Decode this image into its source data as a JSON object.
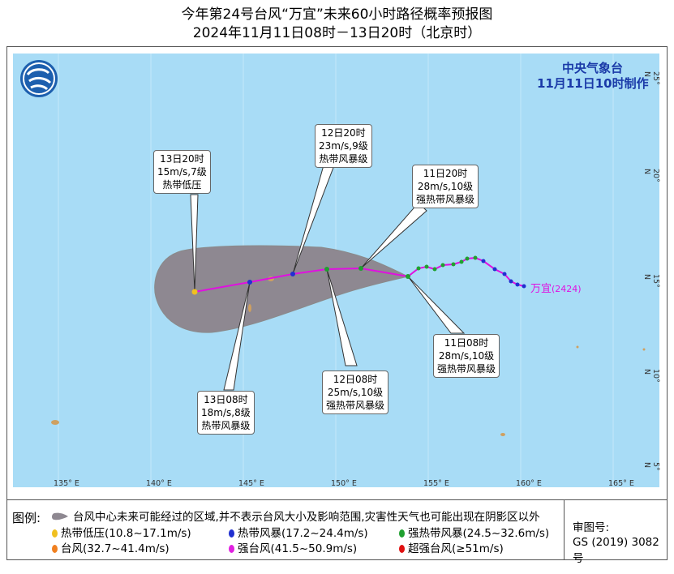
{
  "title_line1": "今年第24号台风“万宜”未来60小时路径概率预报图",
  "title_line2": "2024年11月11日08时－13日20时（北京时）",
  "agency": "中央气象台",
  "issued": "11月11日10时制作",
  "typhoon_label": "万宜",
  "typhoon_id": "(2424)",
  "x_ticks": [
    "135° E",
    "140° E",
    "145° E",
    "150° E",
    "155° E",
    "160° E",
    "165° E"
  ],
  "y_ticks": [
    "25° N",
    "20° N",
    "15° N",
    "10° N",
    "5° N"
  ],
  "callouts": [
    {
      "time": "13日20时",
      "wind": "15m/s,7级",
      "grade": "热带低压"
    },
    {
      "time": "12日20时",
      "wind": "23m/s,9级",
      "grade": "热带风暴级"
    },
    {
      "time": "11日20时",
      "wind": "28m/s,10级",
      "grade": "强热带风暴级"
    },
    {
      "time": "11日08时",
      "wind": "28m/s,10级",
      "grade": "强热带风暴级"
    },
    {
      "time": "12日08时",
      "wind": "25m/s,10级",
      "grade": "强热带风暴级"
    },
    {
      "time": "13日08时",
      "wind": "18m/s,8级",
      "grade": "热带风暴级"
    }
  ],
  "legend": {
    "title": "图例:",
    "cone": "台风中心未来可能经过的区域,并不表示台风大小及影响范围,灾害性天气也可能出现在阴影区以外",
    "items": [
      {
        "label": "热带低压(10.8~17.1m/s)",
        "color": "#f0c020"
      },
      {
        "label": "热带风暴(17.2~24.4m/s)",
        "color": "#2030d0"
      },
      {
        "label": "强热带风暴(24.5~32.6m/s)",
        "color": "#20a030"
      },
      {
        "label": "台风(32.7~41.4m/s)",
        "color": "#f08020"
      },
      {
        "label": "强台风(41.5~50.9m/s)",
        "color": "#e020e0"
      },
      {
        "label": "超强台风(≥51m/s)",
        "color": "#e01010"
      }
    ]
  },
  "review_label": "审图号:",
  "review_no": "GS (2019) 3082号",
  "colors": {
    "sea": "#a8dcf6",
    "cone": "#8e8891",
    "track": "#e010e0"
  }
}
